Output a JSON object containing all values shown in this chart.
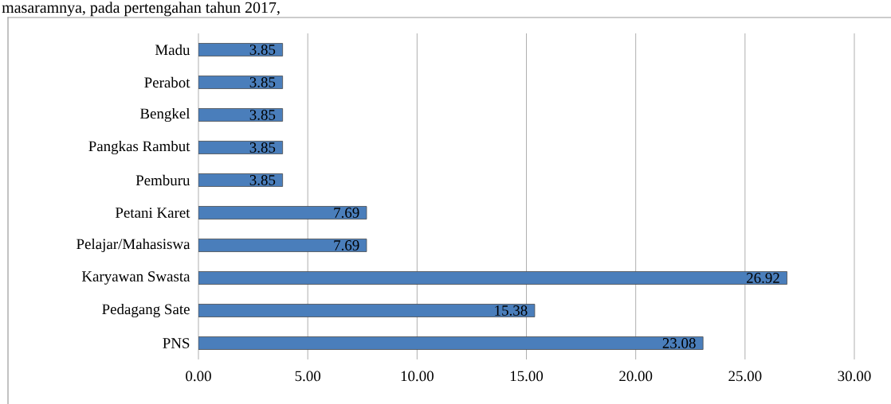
{
  "chart_data": {
    "type": "bar",
    "orientation": "horizontal",
    "categories": [
      "Madu",
      "Perabot",
      "Bengkel",
      "Pangkas Rambut",
      "Pemburu",
      "Petani Karet",
      "Pelajar/Mahasiswa",
      "Karyawan Swasta",
      "Pedagang Sate",
      "PNS"
    ],
    "values": [
      3.85,
      3.85,
      3.85,
      3.85,
      3.85,
      7.69,
      7.69,
      26.92,
      15.38,
      23.08
    ],
    "color": "#4a7ebb",
    "xlim": [
      0,
      30
    ],
    "xticks": [
      {
        "value": 0,
        "label": "0.00"
      },
      {
        "value": 5,
        "label": "5.00"
      },
      {
        "value": 10,
        "label": "10.00"
      },
      {
        "value": 15,
        "label": "15.00"
      },
      {
        "value": 20,
        "label": "20.00"
      },
      {
        "value": 25,
        "label": "25.00"
      },
      {
        "value": 30,
        "label": "30.00"
      }
    ],
    "grid": "x",
    "data_labels": true,
    "annotations": [
      "masaramnya, pada pertengahan tahun 2017,"
    ]
  }
}
